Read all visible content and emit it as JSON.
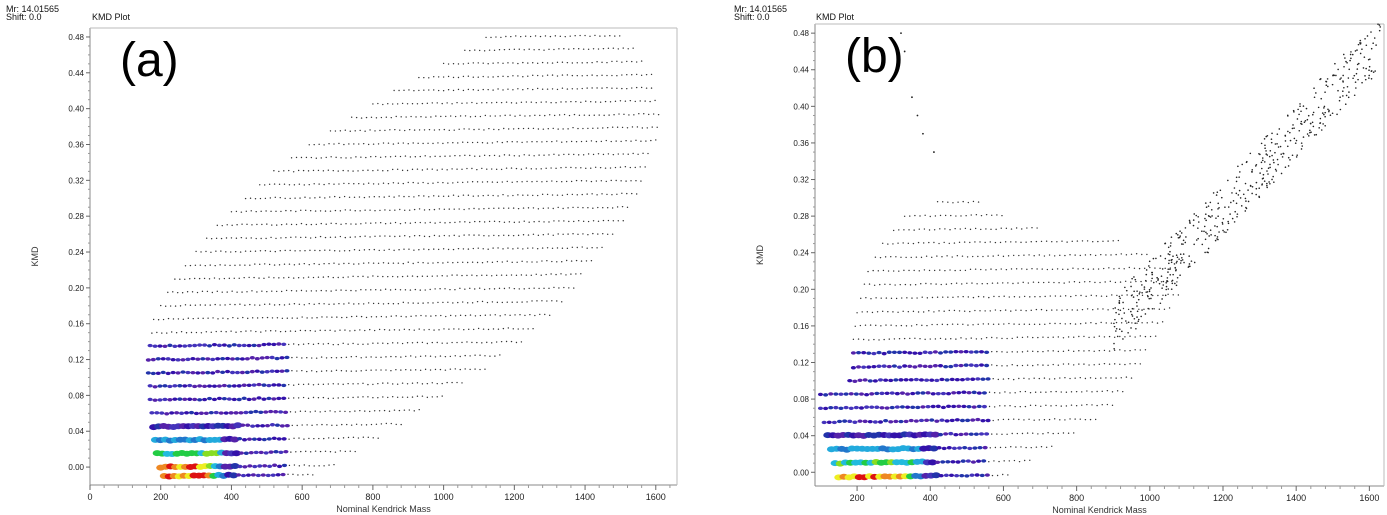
{
  "panels": [
    {
      "id": "a",
      "header": {
        "mr": "Mr: 14.01565",
        "shift": "Shift: 0.0",
        "title": "KMD Plot"
      },
      "tag": "(a)",
      "xlabel": "Nominal Kendrick Mass",
      "ylabel": "KMD"
    },
    {
      "id": "b",
      "header": {
        "mr": "Mr: 14.01565",
        "shift": "Shift: 0.0",
        "title": "KMD Plot"
      },
      "tag": "(b)",
      "xlabel": "Nominal Kendrick Mass",
      "ylabel": "KMD"
    }
  ],
  "chart_data": [
    {
      "type": "scatter",
      "title": "KMD Plot",
      "xlabel": "Nominal Kendrick Mass",
      "ylabel": "KMD",
      "xlim": [
        0,
        1660
      ],
      "ylim": [
        -0.02,
        0.49
      ],
      "xticks": [
        0,
        200,
        400,
        600,
        800,
        1000,
        1200,
        1400,
        1600
      ],
      "xtick_labels": [
        "0",
        "200",
        "400",
        "600",
        "800",
        "1000",
        "1200",
        "1400",
        "1600"
      ],
      "yticks": [
        0.0,
        0.04,
        0.08,
        0.12,
        0.16,
        0.2,
        0.24,
        0.28,
        0.32,
        0.36,
        0.4,
        0.44,
        0.48
      ],
      "ytick_labels": [
        "0.00",
        "0.04",
        "0.08",
        "0.12",
        "0.16",
        "0.20",
        "0.24",
        "0.28",
        "0.32",
        "0.36",
        "0.40",
        "0.44",
        "0.48"
      ],
      "series": [
        {
          "rows": [
            {
              "kmd": -0.01,
              "x0": 210,
              "x1": 640
            },
            {
              "kmd": 0.0,
              "x0": 200,
              "x1": 700
            },
            {
              "kmd": 0.015,
              "x0": 190,
              "x1": 760
            },
            {
              "kmd": 0.03,
              "x0": 185,
              "x1": 820
            },
            {
              "kmd": 0.045,
              "x0": 180,
              "x1": 880
            },
            {
              "kmd": 0.06,
              "x0": 175,
              "x1": 940
            },
            {
              "kmd": 0.075,
              "x0": 170,
              "x1": 1000
            },
            {
              "kmd": 0.09,
              "x0": 170,
              "x1": 1060
            },
            {
              "kmd": 0.105,
              "x0": 165,
              "x1": 1120
            },
            {
              "kmd": 0.12,
              "x0": 165,
              "x1": 1170
            },
            {
              "kmd": 0.135,
              "x0": 170,
              "x1": 1220
            },
            {
              "kmd": 0.15,
              "x0": 175,
              "x1": 1260
            },
            {
              "kmd": 0.165,
              "x0": 180,
              "x1": 1300
            },
            {
              "kmd": 0.18,
              "x0": 200,
              "x1": 1340
            },
            {
              "kmd": 0.195,
              "x0": 220,
              "x1": 1370
            },
            {
              "kmd": 0.21,
              "x0": 240,
              "x1": 1400
            },
            {
              "kmd": 0.225,
              "x0": 270,
              "x1": 1430
            },
            {
              "kmd": 0.24,
              "x0": 300,
              "x1": 1460
            },
            {
              "kmd": 0.255,
              "x0": 330,
              "x1": 1490
            },
            {
              "kmd": 0.27,
              "x0": 360,
              "x1": 1510
            },
            {
              "kmd": 0.285,
              "x0": 400,
              "x1": 1530
            },
            {
              "kmd": 0.3,
              "x0": 440,
              "x1": 1550
            },
            {
              "kmd": 0.315,
              "x0": 480,
              "x1": 1570
            },
            {
              "kmd": 0.33,
              "x0": 520,
              "x1": 1580
            },
            {
              "kmd": 0.345,
              "x0": 570,
              "x1": 1590
            },
            {
              "kmd": 0.36,
              "x0": 620,
              "x1": 1600
            },
            {
              "kmd": 0.375,
              "x0": 680,
              "x1": 1610
            },
            {
              "kmd": 0.39,
              "x0": 740,
              "x1": 1610
            },
            {
              "kmd": 0.405,
              "x0": 800,
              "x1": 1610
            },
            {
              "kmd": 0.42,
              "x0": 860,
              "x1": 1600
            },
            {
              "kmd": 0.435,
              "x0": 930,
              "x1": 1590
            },
            {
              "kmd": 0.45,
              "x0": 1000,
              "x1": 1570
            },
            {
              "kmd": 0.465,
              "x0": 1060,
              "x1": 1540
            },
            {
              "kmd": 0.48,
              "x0": 1120,
              "x1": 1500
            }
          ]
        }
      ],
      "grid": false
    },
    {
      "type": "scatter",
      "title": "KMD Plot",
      "xlabel": "Nominal Kendrick Mass",
      "ylabel": "KMD",
      "xlim": [
        85,
        1640
      ],
      "ylim": [
        -0.015,
        0.49
      ],
      "xticks": [
        200,
        400,
        600,
        800,
        1000,
        1200,
        1400,
        1600
      ],
      "xtick_labels": [
        "200",
        "400",
        "600",
        "800",
        "1000",
        "1200",
        "1400",
        "1600"
      ],
      "yticks": [
        0.0,
        0.04,
        0.08,
        0.12,
        0.16,
        0.2,
        0.24,
        0.28,
        0.32,
        0.36,
        0.4,
        0.44,
        0.48
      ],
      "ytick_labels": [
        "0.00",
        "0.04",
        "0.08",
        "0.12",
        "0.16",
        "0.20",
        "0.24",
        "0.28",
        "0.32",
        "0.36",
        "0.40",
        "0.44",
        "0.48"
      ],
      "series": [
        {
          "rows": [
            {
              "kmd": -0.005,
              "x0": 150,
              "x1": 620
            },
            {
              "kmd": 0.01,
              "x0": 140,
              "x1": 680
            },
            {
              "kmd": 0.025,
              "x0": 130,
              "x1": 740
            },
            {
              "kmd": 0.04,
              "x0": 120,
              "x1": 800
            },
            {
              "kmd": 0.055,
              "x0": 110,
              "x1": 860
            },
            {
              "kmd": 0.07,
              "x0": 100,
              "x1": 900
            },
            {
              "kmd": 0.085,
              "x0": 100,
              "x1": 930
            },
            {
              "kmd": 0.1,
              "x0": 180,
              "x1": 960
            },
            {
              "kmd": 0.115,
              "x0": 190,
              "x1": 980
            },
            {
              "kmd": 0.13,
              "x0": 190,
              "x1": 1000
            },
            {
              "kmd": 0.145,
              "x0": 190,
              "x1": 1020
            },
            {
              "kmd": 0.16,
              "x0": 195,
              "x1": 1040
            },
            {
              "kmd": 0.175,
              "x0": 200,
              "x1": 1060
            },
            {
              "kmd": 0.19,
              "x0": 210,
              "x1": 1080
            },
            {
              "kmd": 0.205,
              "x0": 220,
              "x1": 1080
            },
            {
              "kmd": 0.22,
              "x0": 230,
              "x1": 1070
            },
            {
              "kmd": 0.235,
              "x0": 250,
              "x1": 1000
            },
            {
              "kmd": 0.25,
              "x0": 270,
              "x1": 920
            },
            {
              "kmd": 0.265,
              "x0": 300,
              "x1": 700
            },
            {
              "kmd": 0.28,
              "x0": 330,
              "x1": 600
            },
            {
              "kmd": 0.295,
              "x0": 420,
              "x1": 540
            }
          ],
          "trend": {
            "x0": 900,
            "x1": 1630,
            "kmd0": 0.16,
            "kmd1": 0.47
          }
        }
      ],
      "grid": false
    }
  ]
}
